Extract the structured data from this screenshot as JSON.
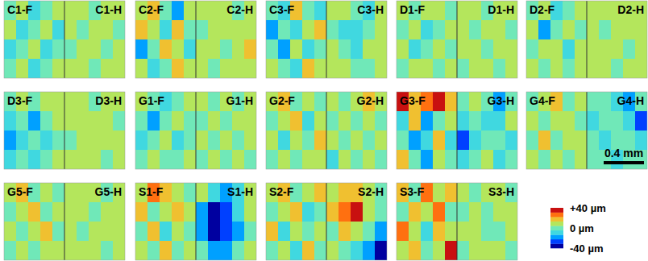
{
  "chart_data": {
    "type": "heatmap",
    "xlim": [
      0,
      0.6
    ],
    "scale_bar": {
      "value": 0.4,
      "label": "0.4 mm"
    },
    "colorbar": {
      "range": [
        -40,
        40
      ],
      "ticks": [
        {
          "value": 40,
          "label": "+40 µm"
        },
        {
          "value": 0,
          "label": "0 µm"
        },
        {
          "value": -40,
          "label": "-40 µm"
        }
      ],
      "colors": [
        "#0000a0",
        "#0040ff",
        "#00a0ff",
        "#40d8e0",
        "#70e8b8",
        "#b4e65c",
        "#f0c030",
        "#ff7010",
        "#c81010"
      ]
    },
    "panels": [
      {
        "title_f": "C1-F",
        "title_h": "C1-H",
        "f": [
          [
            0,
            8,
            -8,
            0,
            8
          ],
          [
            8,
            -8,
            0,
            8,
            -8
          ],
          [
            -8,
            0,
            8,
            -8,
            0
          ],
          [
            0,
            8,
            -8,
            0,
            8
          ]
        ],
        "h": [
          [
            8,
            8,
            0,
            8,
            8
          ],
          [
            8,
            0,
            8,
            8,
            0
          ],
          [
            0,
            8,
            8,
            0,
            8
          ],
          [
            8,
            8,
            0,
            8,
            8
          ]
        ]
      },
      {
        "title_f": "C2-F",
        "title_h": "C2-H",
        "f": [
          [
            8,
            17,
            0,
            -18,
            8
          ],
          [
            17,
            8,
            -8,
            17,
            0
          ],
          [
            -18,
            0,
            17,
            8,
            -8
          ],
          [
            8,
            -8,
            0,
            17,
            8
          ]
        ],
        "h": [
          [
            8,
            8,
            8,
            0,
            8
          ],
          [
            0,
            8,
            8,
            8,
            8
          ],
          [
            8,
            8,
            0,
            8,
            17
          ],
          [
            8,
            0,
            8,
            8,
            8
          ]
        ]
      },
      {
        "title_f": "C3-F",
        "title_h": "C3-H",
        "f": [
          [
            0,
            -8,
            17,
            0,
            -8
          ],
          [
            -18,
            0,
            -8,
            8,
            17
          ],
          [
            0,
            -18,
            8,
            -8,
            0
          ],
          [
            8,
            0,
            -8,
            17,
            8
          ]
        ],
        "h": [
          [
            8,
            8,
            0,
            -8,
            8
          ],
          [
            0,
            -8,
            -8,
            0,
            8
          ],
          [
            8,
            0,
            -8,
            8,
            8
          ],
          [
            8,
            8,
            0,
            0,
            8
          ]
        ]
      },
      {
        "title_f": "D1-F",
        "title_h": "D1-H",
        "f": [
          [
            8,
            0,
            8,
            8,
            0
          ],
          [
            0,
            8,
            -8,
            0,
            8
          ],
          [
            8,
            -8,
            0,
            8,
            0
          ],
          [
            0,
            8,
            8,
            0,
            8
          ]
        ],
        "h": [
          [
            8,
            8,
            0,
            8,
            8
          ],
          [
            8,
            0,
            8,
            8,
            0
          ],
          [
            8,
            8,
            0,
            8,
            8
          ],
          [
            0,
            8,
            8,
            0,
            8
          ]
        ]
      },
      {
        "title_f": "D2-F",
        "title_h": "D2-H",
        "f": [
          [
            0,
            8,
            -8,
            0,
            8
          ],
          [
            8,
            -18,
            0,
            8,
            0
          ],
          [
            0,
            8,
            8,
            -8,
            8
          ],
          [
            8,
            0,
            8,
            0,
            8
          ]
        ],
        "h": [
          [
            8,
            8,
            8,
            8,
            8
          ],
          [
            8,
            0,
            8,
            8,
            8
          ],
          [
            8,
            8,
            8,
            0,
            8
          ],
          [
            8,
            8,
            0,
            8,
            8
          ]
        ]
      },
      {
        "title_f": "D3-F",
        "title_h": "D3-H",
        "f": [
          [
            0,
            8,
            0,
            8,
            8
          ],
          [
            -8,
            0,
            -18,
            0,
            8
          ],
          [
            -18,
            -8,
            0,
            -8,
            0
          ],
          [
            -8,
            0,
            -8,
            0,
            8
          ]
        ],
        "h": [
          [
            8,
            8,
            0,
            8,
            8
          ],
          [
            8,
            8,
            8,
            8,
            0
          ],
          [
            0,
            8,
            8,
            8,
            8
          ],
          [
            8,
            8,
            8,
            0,
            8
          ]
        ]
      },
      {
        "title_f": "G1-F",
        "title_h": "G1-H",
        "f": [
          [
            8,
            0,
            -8,
            0,
            8
          ],
          [
            0,
            -18,
            0,
            8,
            0
          ],
          [
            -8,
            0,
            8,
            -8,
            0
          ],
          [
            0,
            8,
            0,
            0,
            8
          ]
        ],
        "h": [
          [
            8,
            0,
            8,
            0,
            8
          ],
          [
            0,
            8,
            0,
            8,
            8
          ],
          [
            8,
            0,
            8,
            0,
            8
          ],
          [
            0,
            8,
            0,
            8,
            0
          ]
        ]
      },
      {
        "title_f": "G2-F",
        "title_h": "G2-H",
        "f": [
          [
            8,
            17,
            0,
            8,
            0
          ],
          [
            0,
            8,
            17,
            -8,
            8
          ],
          [
            8,
            -8,
            8,
            0,
            17
          ],
          [
            0,
            8,
            0,
            8,
            8
          ]
        ],
        "h": [
          [
            8,
            0,
            8,
            17,
            8
          ],
          [
            0,
            8,
            0,
            8,
            0
          ],
          [
            8,
            0,
            8,
            0,
            8
          ],
          [
            -8,
            8,
            0,
            8,
            0
          ]
        ]
      },
      {
        "title_f": "G3-F",
        "title_h": "G3-H",
        "f": [
          [
            36,
            17,
            26,
            36,
            17
          ],
          [
            -8,
            17,
            -18,
            0,
            8
          ],
          [
            0,
            -18,
            -8,
            17,
            -8
          ],
          [
            17,
            0,
            -18,
            8,
            0
          ]
        ],
        "h": [
          [
            0,
            8,
            0,
            -18,
            0
          ],
          [
            -8,
            0,
            -8,
            -8,
            8
          ],
          [
            -27,
            -8,
            0,
            0,
            -8
          ],
          [
            -8,
            0,
            8,
            -8,
            0
          ]
        ]
      },
      {
        "title_f": "G4-F",
        "title_h": "G4-H",
        "f": [
          [
            0,
            8,
            17,
            0,
            8
          ],
          [
            8,
            0,
            8,
            8,
            0
          ],
          [
            0,
            17,
            0,
            8,
            8
          ],
          [
            8,
            0,
            8,
            0,
            8
          ]
        ],
        "h": [
          [
            0,
            0,
            -8,
            -18,
            0
          ],
          [
            -8,
            0,
            0,
            -8,
            -27
          ],
          [
            0,
            -8,
            0,
            0,
            -8
          ],
          [
            0,
            0,
            -8,
            0,
            0
          ]
        ]
      },
      {
        "title_f": "G5-F",
        "title_h": "G5-H",
        "f": [
          [
            8,
            17,
            0,
            8,
            0
          ],
          [
            0,
            8,
            17,
            0,
            8
          ],
          [
            8,
            0,
            8,
            17,
            0
          ],
          [
            0,
            8,
            0,
            8,
            8
          ]
        ],
        "h": [
          [
            8,
            8,
            8,
            0,
            8
          ],
          [
            8,
            8,
            0,
            8,
            8
          ],
          [
            8,
            0,
            8,
            8,
            8
          ],
          [
            8,
            8,
            8,
            0,
            8
          ]
        ]
      },
      {
        "title_f": "S1-F",
        "title_h": "S1-H",
        "f": [
          [
            8,
            26,
            17,
            8,
            0
          ],
          [
            17,
            0,
            8,
            17,
            8
          ],
          [
            0,
            17,
            -8,
            8,
            0
          ],
          [
            8,
            0,
            17,
            0,
            8
          ]
        ],
        "h": [
          [
            8,
            -8,
            -18,
            -8,
            8
          ],
          [
            -18,
            -36,
            -27,
            -8,
            8
          ],
          [
            -18,
            -36,
            -27,
            -18,
            0
          ],
          [
            0,
            -18,
            -18,
            0,
            8
          ]
        ]
      },
      {
        "title_f": "S2-F",
        "title_h": "S2-H",
        "f": [
          [
            8,
            17,
            0,
            8,
            17
          ],
          [
            0,
            8,
            17,
            -8,
            0
          ],
          [
            17,
            -8,
            8,
            0,
            8
          ],
          [
            0,
            8,
            -8,
            17,
            0
          ]
        ],
        "h": [
          [
            8,
            17,
            17,
            8,
            0
          ],
          [
            17,
            26,
            36,
            8,
            0
          ],
          [
            0,
            17,
            8,
            0,
            -18
          ],
          [
            8,
            0,
            -8,
            -18,
            -36
          ]
        ]
      },
      {
        "title_f": "S3-F",
        "title_h": "S3-H",
        "f": [
          [
            17,
            0,
            26,
            8,
            17
          ],
          [
            0,
            17,
            8,
            26,
            0
          ],
          [
            26,
            8,
            -8,
            17,
            8
          ],
          [
            8,
            17,
            0,
            8,
            36
          ]
        ],
        "h": [
          [
            8,
            0,
            8,
            8,
            0
          ],
          [
            0,
            8,
            0,
            8,
            8
          ],
          [
            8,
            8,
            0,
            0,
            8
          ],
          [
            0,
            8,
            8,
            8,
            0
          ]
        ]
      }
    ]
  }
}
